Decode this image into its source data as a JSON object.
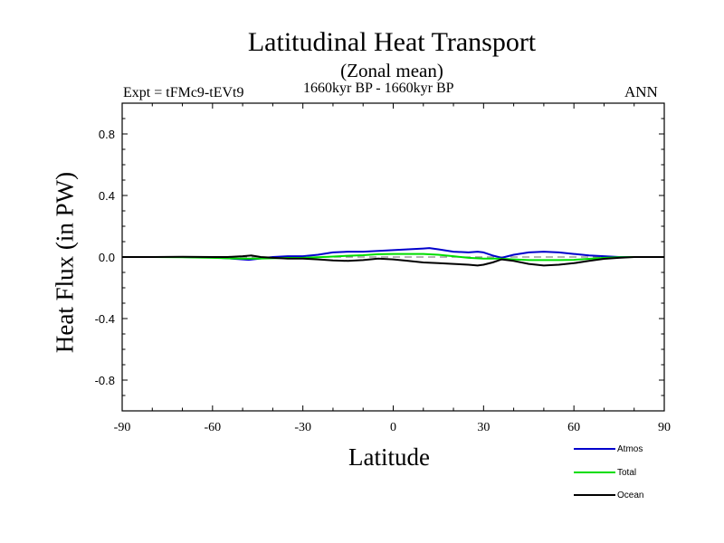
{
  "chart_data": {
    "type": "line",
    "title": "Latitudinal Heat Transport",
    "subtitle": "(Zonal mean)",
    "period": "1660kyr BP - 1660kyr BP",
    "experiment": "Expt = tFMc9-tEVt9",
    "season": "ANN",
    "xlabel": "Latitude",
    "ylabel": "Heat Flux (in PW)",
    "xlim": [
      -90,
      90
    ],
    "ylim": [
      -1.0,
      1.0
    ],
    "xticks": [
      -90,
      -60,
      -30,
      0,
      30,
      60,
      90
    ],
    "xtick_labels": [
      "-90",
      "-60",
      "-30",
      "0",
      "30",
      "60",
      "90"
    ],
    "yticks": [
      -0.8,
      -0.4,
      0.0,
      0.4,
      0.8
    ],
    "ytick_labels": [
      "-0.8",
      "-0.4",
      "0.0",
      "0.4",
      "0.8"
    ],
    "zero_line": true,
    "legend_position": "bottom-right outside",
    "series": [
      {
        "name": "Atmos",
        "color": "#0000cc",
        "x": [
          -90,
          -80,
          -70,
          -60,
          -55,
          -50,
          -48,
          -45,
          -40,
          -35,
          -30,
          -25,
          -20,
          -15,
          -10,
          -5,
          0,
          5,
          10,
          12,
          15,
          20,
          25,
          28,
          30,
          33,
          36,
          40,
          45,
          50,
          55,
          60,
          65,
          70,
          75,
          80,
          85,
          90
        ],
        "y": [
          0.0,
          0.0,
          0.0,
          -0.003,
          -0.008,
          -0.015,
          -0.018,
          -0.012,
          0.0,
          0.005,
          0.005,
          0.015,
          0.03,
          0.035,
          0.035,
          0.04,
          0.045,
          0.05,
          0.055,
          0.058,
          0.05,
          0.035,
          0.03,
          0.035,
          0.03,
          0.01,
          -0.005,
          0.015,
          0.03,
          0.035,
          0.03,
          0.02,
          0.01,
          0.005,
          0.0,
          0.0,
          0.0,
          0.0
        ]
      },
      {
        "name": "Total",
        "color": "#00dd00",
        "x": [
          -90,
          -80,
          -70,
          -60,
          -55,
          -50,
          -45,
          -40,
          -35,
          -30,
          -25,
          -20,
          -15,
          -10,
          -5,
          0,
          5,
          10,
          15,
          20,
          25,
          30,
          35,
          40,
          45,
          50,
          55,
          60,
          65,
          70,
          75,
          80,
          85,
          90
        ],
        "y": [
          0.0,
          0.0,
          -0.002,
          -0.005,
          -0.008,
          -0.01,
          -0.01,
          -0.008,
          -0.006,
          -0.005,
          -0.002,
          0.003,
          0.008,
          0.012,
          0.018,
          0.02,
          0.02,
          0.02,
          0.015,
          0.005,
          -0.005,
          -0.01,
          -0.01,
          -0.015,
          -0.02,
          -0.02,
          -0.02,
          -0.018,
          -0.012,
          -0.005,
          -0.002,
          0.0,
          0.0,
          0.0
        ]
      },
      {
        "name": "Ocean",
        "color": "#000000",
        "x": [
          -90,
          -80,
          -70,
          -60,
          -55,
          -50,
          -47,
          -44,
          -40,
          -35,
          -30,
          -25,
          -20,
          -15,
          -10,
          -5,
          0,
          5,
          10,
          15,
          20,
          25,
          28,
          30,
          33,
          36,
          40,
          45,
          50,
          55,
          60,
          65,
          70,
          75,
          80,
          85,
          90
        ],
        "y": [
          0.0,
          0.0,
          0.002,
          0.0,
          0.0,
          0.005,
          0.01,
          0.0,
          -0.005,
          -0.01,
          -0.01,
          -0.015,
          -0.022,
          -0.025,
          -0.02,
          -0.01,
          -0.015,
          -0.025,
          -0.035,
          -0.04,
          -0.045,
          -0.05,
          -0.055,
          -0.05,
          -0.035,
          -0.015,
          -0.025,
          -0.045,
          -0.055,
          -0.05,
          -0.04,
          -0.025,
          -0.012,
          -0.005,
          0.0,
          0.0,
          0.0
        ]
      }
    ]
  }
}
